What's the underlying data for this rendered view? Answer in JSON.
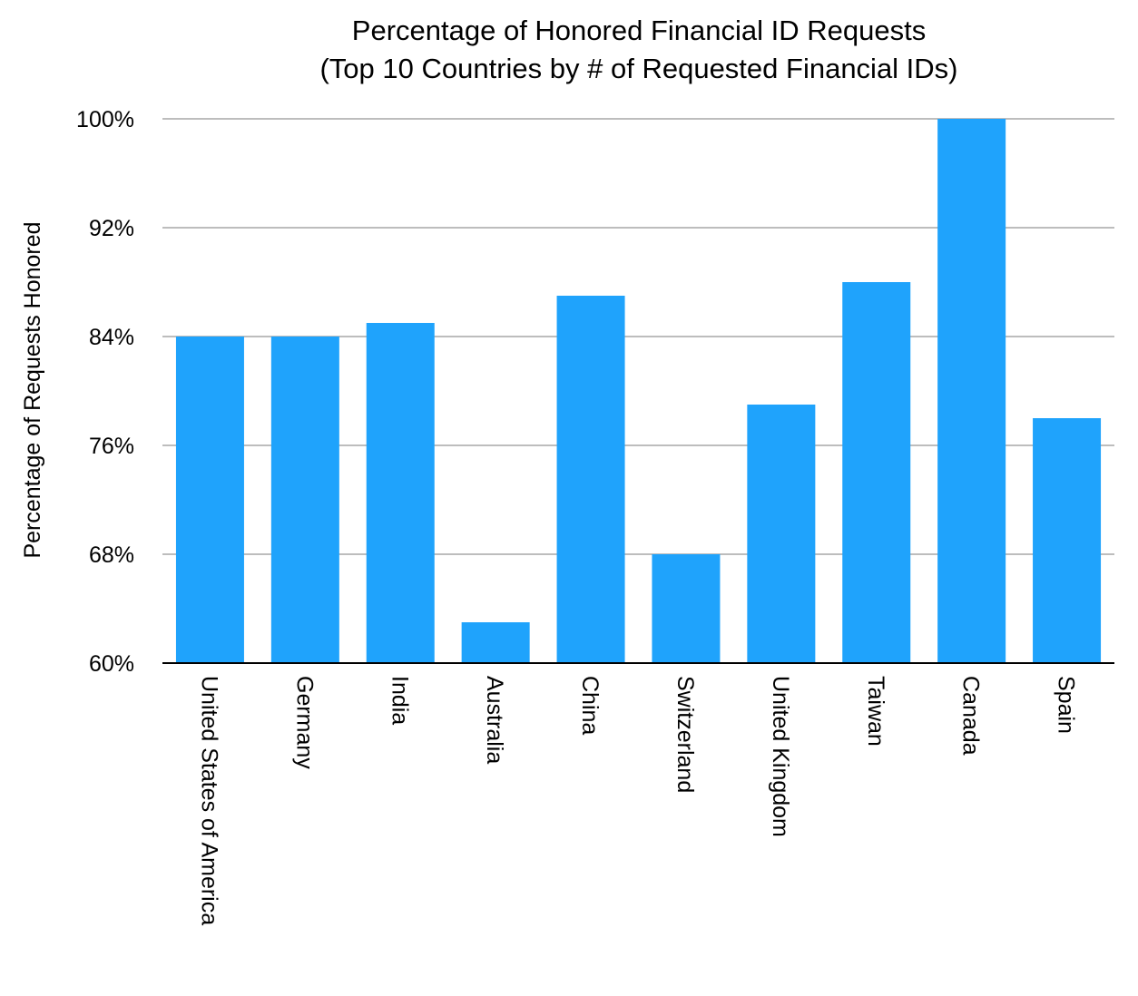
{
  "chart_data": {
    "type": "bar",
    "title": "Percentage of Honored Financial ID Requests",
    "subtitle": "(Top 10 Countries by # of Requested Financial IDs)",
    "xlabel": "",
    "ylabel": "Percentage of Requests Honored",
    "categories": [
      "United States of America",
      "Germany",
      "India",
      "Australia",
      "China",
      "Switzerland",
      "United Kingdom",
      "Taiwan",
      "Canada",
      "Spain"
    ],
    "values": [
      84,
      84,
      85,
      63,
      87,
      68,
      79,
      88,
      100,
      78
    ],
    "ylim": [
      60,
      100
    ],
    "yticks": [
      60,
      68,
      76,
      84,
      92,
      100
    ],
    "ytick_labels": [
      "60%",
      "68%",
      "76%",
      "84%",
      "92%",
      "100%"
    ],
    "grid": true,
    "legend": "none",
    "colors": {
      "bar": "#1FA3FC",
      "grid": "#BDBDBD",
      "axis": "#000000"
    }
  }
}
